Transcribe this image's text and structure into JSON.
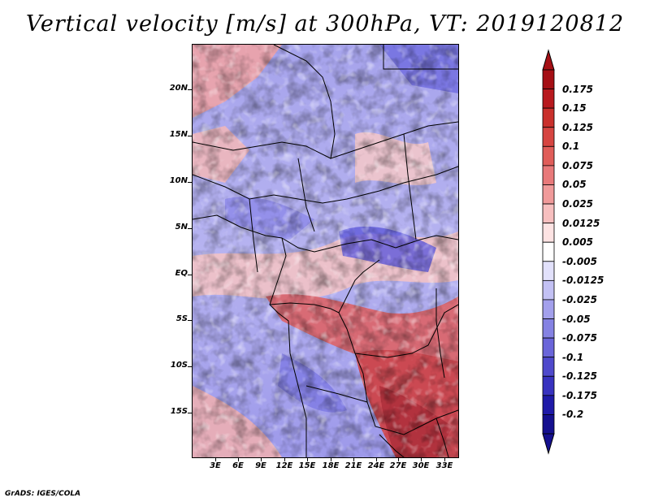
{
  "title": "Vertical velocity [m/s] at 300hPa, VT: 2019120812",
  "credit": "GrADS: IGES/COLA",
  "lat_labels": [
    "20N",
    "15N",
    "10N",
    "5N",
    "EQ",
    "5S",
    "10S",
    "15S"
  ],
  "lon_labels": [
    "3E",
    "6E",
    "9E",
    "12E",
    "15E",
    "18E",
    "21E",
    "24E",
    "27E",
    "30E",
    "33E"
  ],
  "colorbar": {
    "labels": [
      "0.175",
      "0.15",
      "0.125",
      "0.1",
      "0.075",
      "0.05",
      "0.025",
      "0.0125",
      "0.005",
      "-0.005",
      "-0.0125",
      "-0.025",
      "-0.05",
      "-0.075",
      "-0.1",
      "-0.125",
      "-0.175",
      "-0.2"
    ],
    "colors": [
      "#a50f15",
      "#b8191e",
      "#c9302c",
      "#d64541",
      "#e05d59",
      "#e8797a",
      "#f09a9a",
      "#f7bfbf",
      "#fde3e3",
      "#ffffff",
      "#e2e1fb",
      "#c3c1f4",
      "#a3a0ec",
      "#8582e3",
      "#6a65d9",
      "#4f49cc",
      "#3832bf",
      "#1f1aa8",
      "#15108f"
    ]
  },
  "map": {
    "lat_range": [
      -19.5,
      25
    ],
    "lon_range": [
      0,
      34
    ],
    "variable": "Vertical velocity",
    "units": "m/s",
    "level": "300hPa",
    "valid_time": "2019120812"
  }
}
